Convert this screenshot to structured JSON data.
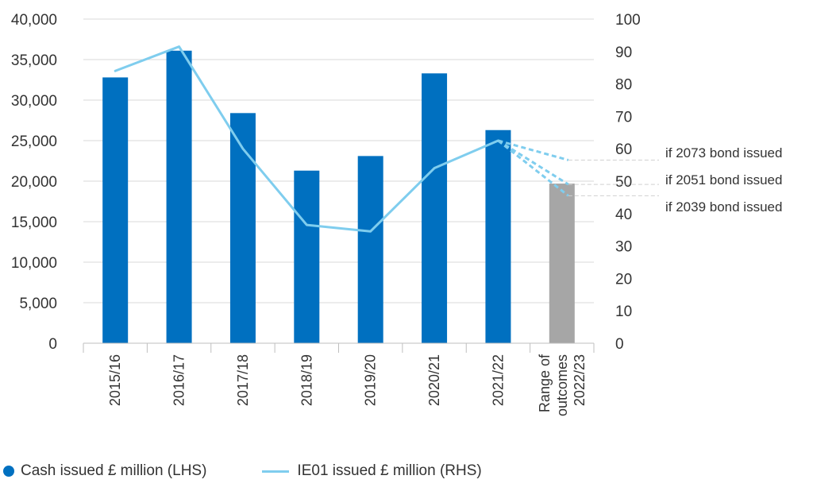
{
  "colors": {
    "bar": "#0070c0",
    "range_bar": "#a6a6a6",
    "line": "#7fcdee",
    "gridline": "#d9d9d9",
    "axis": "#bfbfbf",
    "guide": "#d0d0d0",
    "text": "#333333"
  },
  "legend": {
    "bar_label": "Cash issued £ million (LHS)",
    "line_label": "IE01 issued £ million (RHS)"
  },
  "chart_data": {
    "type": "bar",
    "categories": [
      [
        "2015/16"
      ],
      [
        "2016/17"
      ],
      [
        "2017/18"
      ],
      [
        "2018/19"
      ],
      [
        "2019/20"
      ],
      [
        "2020/21"
      ],
      [
        "2021/22"
      ],
      [
        "Range of",
        "outcomes",
        "2022/23"
      ]
    ],
    "series": [
      {
        "name": "Cash issued £ million (LHS)",
        "axis": "left",
        "type": "bar",
        "values": [
          32800,
          36100,
          28400,
          21300,
          23100,
          33300,
          26300,
          19700
        ]
      },
      {
        "name": "IE01 issued £ million (RHS)",
        "axis": "right",
        "type": "line",
        "values": [
          84,
          91.5,
          60,
          36.5,
          34.5,
          54,
          62.5,
          null
        ]
      }
    ],
    "projections": [
      {
        "label": "if 2073 bond issued",
        "from": 62.5,
        "to": 56.5
      },
      {
        "label": "if 2051 bond issued",
        "from": 62.5,
        "to": 49
      },
      {
        "label": "if 2039 bond issued",
        "from": 62.5,
        "to": 45.5
      }
    ],
    "left_axis": {
      "min": 0,
      "max": 40000,
      "ticks": [
        "0",
        "5,000",
        "10,000",
        "15,000",
        "20,000",
        "25,000",
        "30,000",
        "35,000",
        "40,000"
      ]
    },
    "right_axis": {
      "min": 0,
      "max": 100,
      "ticks": [
        "0",
        "10",
        "20",
        "30",
        "40",
        "50",
        "60",
        "70",
        "80",
        "90",
        "100"
      ]
    },
    "grid": true,
    "legend_position": "bottom"
  }
}
